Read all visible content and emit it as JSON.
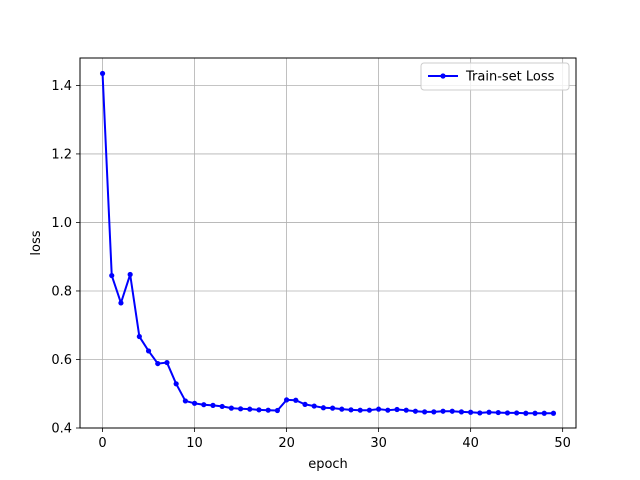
{
  "chart_data": {
    "type": "line",
    "title": "",
    "xlabel": "epoch",
    "ylabel": "loss",
    "xlim": [
      -2.45,
      51.45
    ],
    "ylim": [
      0.4,
      1.48
    ],
    "xticks": [
      0,
      10,
      20,
      30,
      40,
      50
    ],
    "yticks": [
      0.4,
      0.6,
      0.8,
      1.0,
      1.2,
      1.4
    ],
    "xtick_labels": [
      "0",
      "10",
      "20",
      "30",
      "40",
      "50"
    ],
    "ytick_labels": [
      "0.4",
      "0.6",
      "0.8",
      "1.0",
      "1.2",
      "1.4"
    ],
    "grid": true,
    "legend_position": "top-right",
    "series": [
      {
        "name": "Train-set Loss",
        "color": "#0000ff",
        "marker": "circle",
        "x": [
          0,
          1,
          2,
          3,
          4,
          5,
          6,
          7,
          8,
          9,
          10,
          11,
          12,
          13,
          14,
          15,
          16,
          17,
          18,
          19,
          20,
          21,
          22,
          23,
          24,
          25,
          26,
          27,
          28,
          29,
          30,
          31,
          32,
          33,
          34,
          35,
          36,
          37,
          38,
          39,
          40,
          41,
          42,
          43,
          44,
          45,
          46,
          47,
          48,
          49
        ],
        "values": [
          1.435,
          0.845,
          0.765,
          0.848,
          0.667,
          0.625,
          0.588,
          0.591,
          0.529,
          0.479,
          0.472,
          0.468,
          0.466,
          0.463,
          0.458,
          0.456,
          0.455,
          0.453,
          0.452,
          0.451,
          0.482,
          0.481,
          0.469,
          0.464,
          0.459,
          0.458,
          0.455,
          0.453,
          0.452,
          0.452,
          0.455,
          0.452,
          0.454,
          0.452,
          0.449,
          0.447,
          0.447,
          0.449,
          0.449,
          0.447,
          0.446,
          0.444,
          0.446,
          0.445,
          0.444,
          0.444,
          0.443,
          0.443,
          0.443,
          0.443
        ]
      }
    ]
  }
}
